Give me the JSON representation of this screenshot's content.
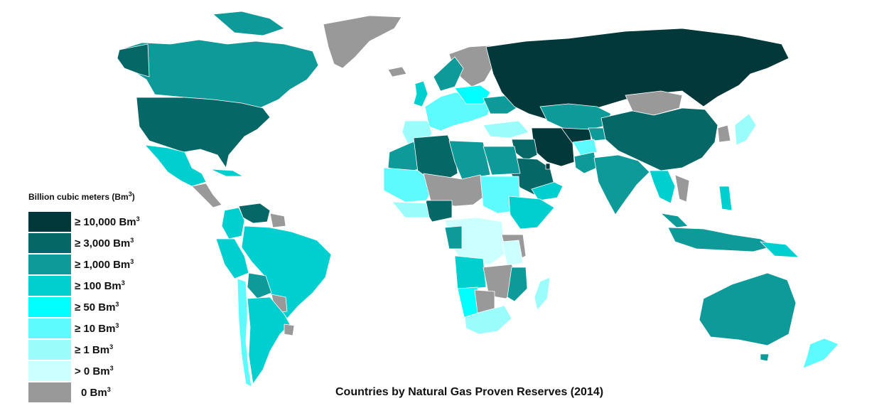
{
  "legend": {
    "title": "Billion cubic meters (Bm",
    "title_sup": "3",
    "title_close": ")",
    "items": [
      {
        "label": "≥ 10,000 Bm",
        "color": "#02383a"
      },
      {
        "label": "≥ 3,000 Bm",
        "color": "#056766"
      },
      {
        "label": "≥ 1,000 Bm",
        "color": "#0e9a98"
      },
      {
        "label": "≥ 100 Bm",
        "color": "#00cfd0"
      },
      {
        "label": "≥ 50 Bm",
        "color": "#01ffff"
      },
      {
        "label": "≥ 10 Bm",
        "color": "#5dfbfd"
      },
      {
        "label": "≥ 1 Bm",
        "color": "#9bfcfc"
      },
      {
        "label": "> 0 Bm",
        "color": "#ccffff"
      },
      {
        "label": "0 Bm",
        "color": "#999999"
      }
    ],
    "unit_sup": "3"
  },
  "caption": "Countries by Natural Gas Proven Reserves (2014)"
}
